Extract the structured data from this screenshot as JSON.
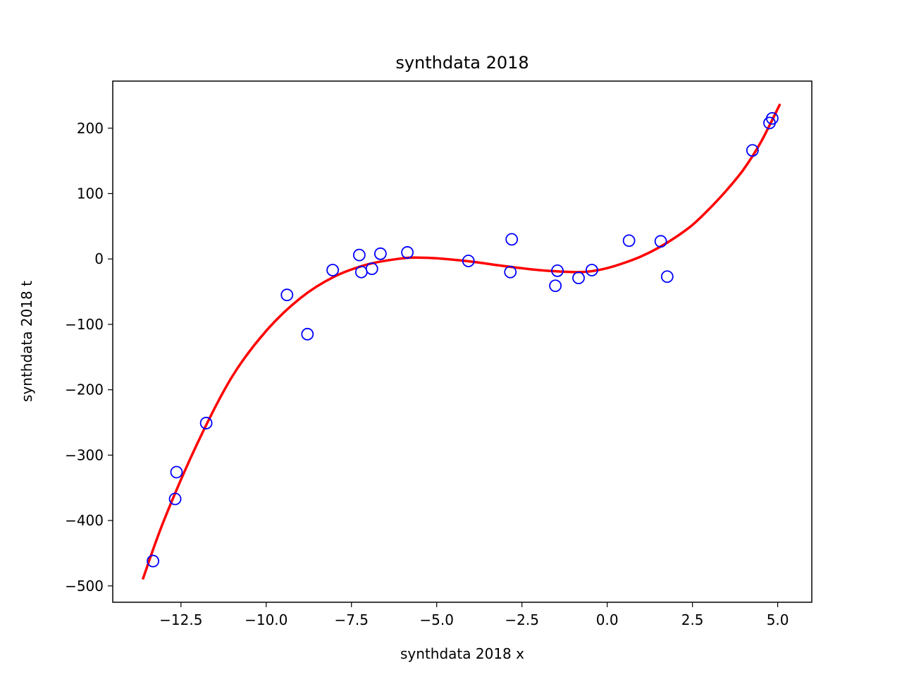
{
  "chart_data": {
    "type": "scatter",
    "title": "synthdata 2018",
    "xlabel": "synthdata 2018 x",
    "ylabel": "synthdata 2018 t",
    "xlim": [
      -14.5,
      6.0
    ],
    "ylim": [
      -525,
      272
    ],
    "grid": false,
    "x_ticks": [
      -12.5,
      -10.0,
      -7.5,
      -5.0,
      -2.5,
      0.0,
      2.5,
      5.0
    ],
    "x_tick_labels": [
      "−12.5",
      "−10.0",
      "−7.5",
      "−5.0",
      "−2.5",
      "0.0",
      "2.5",
      "5.0"
    ],
    "y_ticks": [
      200,
      100,
      0,
      -100,
      -200,
      -300,
      -400,
      -500
    ],
    "y_tick_labels": [
      "200",
      "100",
      "0",
      "−100",
      "−200",
      "−300",
      "−400",
      "−500"
    ],
    "colors": {
      "points": "#0000ff",
      "curve": "#ff0000",
      "axes": "#000000"
    },
    "series": [
      {
        "kind": "scatter",
        "marker": "open-circle",
        "points": [
          {
            "x": -13.32,
            "y": -462
          },
          {
            "x": -12.67,
            "y": -367
          },
          {
            "x": -12.63,
            "y": -326
          },
          {
            "x": -11.76,
            "y": -251
          },
          {
            "x": -9.39,
            "y": -55
          },
          {
            "x": -8.79,
            "y": -115
          },
          {
            "x": -8.05,
            "y": -17
          },
          {
            "x": -7.27,
            "y": 6
          },
          {
            "x": -7.21,
            "y": -20
          },
          {
            "x": -6.9,
            "y": -15
          },
          {
            "x": -6.65,
            "y": 8
          },
          {
            "x": -5.86,
            "y": 10
          },
          {
            "x": -4.07,
            "y": -3
          },
          {
            "x": -2.84,
            "y": -20
          },
          {
            "x": -2.8,
            "y": 30
          },
          {
            "x": -1.52,
            "y": -41
          },
          {
            "x": -1.46,
            "y": -18
          },
          {
            "x": -0.84,
            "y": -29
          },
          {
            "x": -0.45,
            "y": -17
          },
          {
            "x": 0.64,
            "y": 28
          },
          {
            "x": 1.57,
            "y": 27
          },
          {
            "x": 1.76,
            "y": -27
          },
          {
            "x": 4.26,
            "y": 166
          },
          {
            "x": 4.76,
            "y": 208
          },
          {
            "x": 4.84,
            "y": 215
          }
        ]
      },
      {
        "kind": "line",
        "points": [
          {
            "x": -13.62,
            "y": -490
          },
          {
            "x": -13.0,
            "y": -400
          },
          {
            "x": -12.0,
            "y": -280
          },
          {
            "x": -11.0,
            "y": -180
          },
          {
            "x": -10.0,
            "y": -110
          },
          {
            "x": -9.0,
            "y": -60
          },
          {
            "x": -8.0,
            "y": -27
          },
          {
            "x": -7.0,
            "y": -8
          },
          {
            "x": -6.0,
            "y": 1
          },
          {
            "x": -5.5,
            "y": 2
          },
          {
            "x": -5.0,
            "y": 1
          },
          {
            "x": -4.0,
            "y": -4
          },
          {
            "x": -3.0,
            "y": -11
          },
          {
            "x": -2.0,
            "y": -17
          },
          {
            "x": -1.0,
            "y": -20
          },
          {
            "x": -0.5,
            "y": -19
          },
          {
            "x": 0.0,
            "y": -14
          },
          {
            "x": 0.5,
            "y": -6
          },
          {
            "x": 1.0,
            "y": 4
          },
          {
            "x": 1.5,
            "y": 17
          },
          {
            "x": 2.0,
            "y": 33
          },
          {
            "x": 2.5,
            "y": 52
          },
          {
            "x": 3.0,
            "y": 77
          },
          {
            "x": 3.5,
            "y": 105
          },
          {
            "x": 4.0,
            "y": 137
          },
          {
            "x": 4.5,
            "y": 178
          },
          {
            "x": 5.07,
            "y": 237
          }
        ]
      }
    ]
  }
}
